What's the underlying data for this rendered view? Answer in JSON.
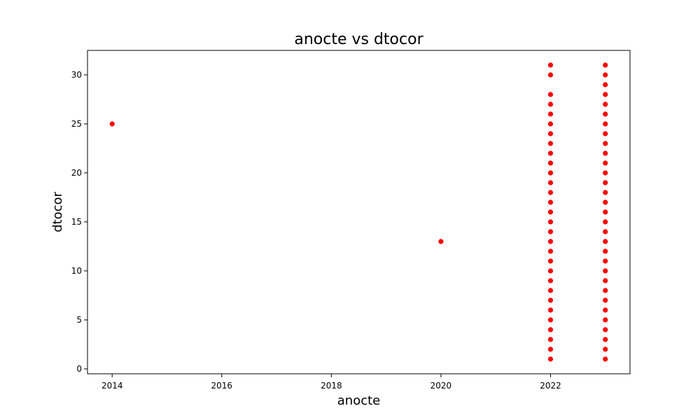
{
  "chart_data": {
    "type": "scatter",
    "title": "anocte vs dtocor",
    "xlabel": "anocte",
    "ylabel": "dtocor",
    "xlim": [
      2013.55,
      2023.45
    ],
    "ylim": [
      -0.5,
      32.5
    ],
    "x_ticks": [
      2014,
      2016,
      2018,
      2020,
      2022
    ],
    "y_ticks": [
      0,
      5,
      10,
      15,
      20,
      25,
      30
    ],
    "grid": false,
    "legend": "none",
    "marker_color": "#ff0000",
    "points": [
      {
        "x": 2014,
        "y": 25
      },
      {
        "x": 2020,
        "y": 13
      },
      {
        "x": 2022,
        "y": 1
      },
      {
        "x": 2022,
        "y": 2
      },
      {
        "x": 2022,
        "y": 3
      },
      {
        "x": 2022,
        "y": 4
      },
      {
        "x": 2022,
        "y": 5
      },
      {
        "x": 2022,
        "y": 6
      },
      {
        "x": 2022,
        "y": 7
      },
      {
        "x": 2022,
        "y": 8
      },
      {
        "x": 2022,
        "y": 9
      },
      {
        "x": 2022,
        "y": 10
      },
      {
        "x": 2022,
        "y": 11
      },
      {
        "x": 2022,
        "y": 12
      },
      {
        "x": 2022,
        "y": 13
      },
      {
        "x": 2022,
        "y": 14
      },
      {
        "x": 2022,
        "y": 15
      },
      {
        "x": 2022,
        "y": 16
      },
      {
        "x": 2022,
        "y": 17
      },
      {
        "x": 2022,
        "y": 18
      },
      {
        "x": 2022,
        "y": 19
      },
      {
        "x": 2022,
        "y": 20
      },
      {
        "x": 2022,
        "y": 21
      },
      {
        "x": 2022,
        "y": 22
      },
      {
        "x": 2022,
        "y": 23
      },
      {
        "x": 2022,
        "y": 24
      },
      {
        "x": 2022,
        "y": 25
      },
      {
        "x": 2022,
        "y": 26
      },
      {
        "x": 2022,
        "y": 27
      },
      {
        "x": 2022,
        "y": 28
      },
      {
        "x": 2022,
        "y": 30
      },
      {
        "x": 2022,
        "y": 31
      },
      {
        "x": 2023,
        "y": 1
      },
      {
        "x": 2023,
        "y": 2
      },
      {
        "x": 2023,
        "y": 3
      },
      {
        "x": 2023,
        "y": 4
      },
      {
        "x": 2023,
        "y": 5
      },
      {
        "x": 2023,
        "y": 6
      },
      {
        "x": 2023,
        "y": 7
      },
      {
        "x": 2023,
        "y": 8
      },
      {
        "x": 2023,
        "y": 9
      },
      {
        "x": 2023,
        "y": 10
      },
      {
        "x": 2023,
        "y": 11
      },
      {
        "x": 2023,
        "y": 12
      },
      {
        "x": 2023,
        "y": 13
      },
      {
        "x": 2023,
        "y": 14
      },
      {
        "x": 2023,
        "y": 15
      },
      {
        "x": 2023,
        "y": 16
      },
      {
        "x": 2023,
        "y": 17
      },
      {
        "x": 2023,
        "y": 18
      },
      {
        "x": 2023,
        "y": 19
      },
      {
        "x": 2023,
        "y": 20
      },
      {
        "x": 2023,
        "y": 21
      },
      {
        "x": 2023,
        "y": 22
      },
      {
        "x": 2023,
        "y": 23
      },
      {
        "x": 2023,
        "y": 24
      },
      {
        "x": 2023,
        "y": 25
      },
      {
        "x": 2023,
        "y": 26
      },
      {
        "x": 2023,
        "y": 27
      },
      {
        "x": 2023,
        "y": 28
      },
      {
        "x": 2023,
        "y": 29
      },
      {
        "x": 2023,
        "y": 30
      },
      {
        "x": 2023,
        "y": 31
      }
    ]
  }
}
